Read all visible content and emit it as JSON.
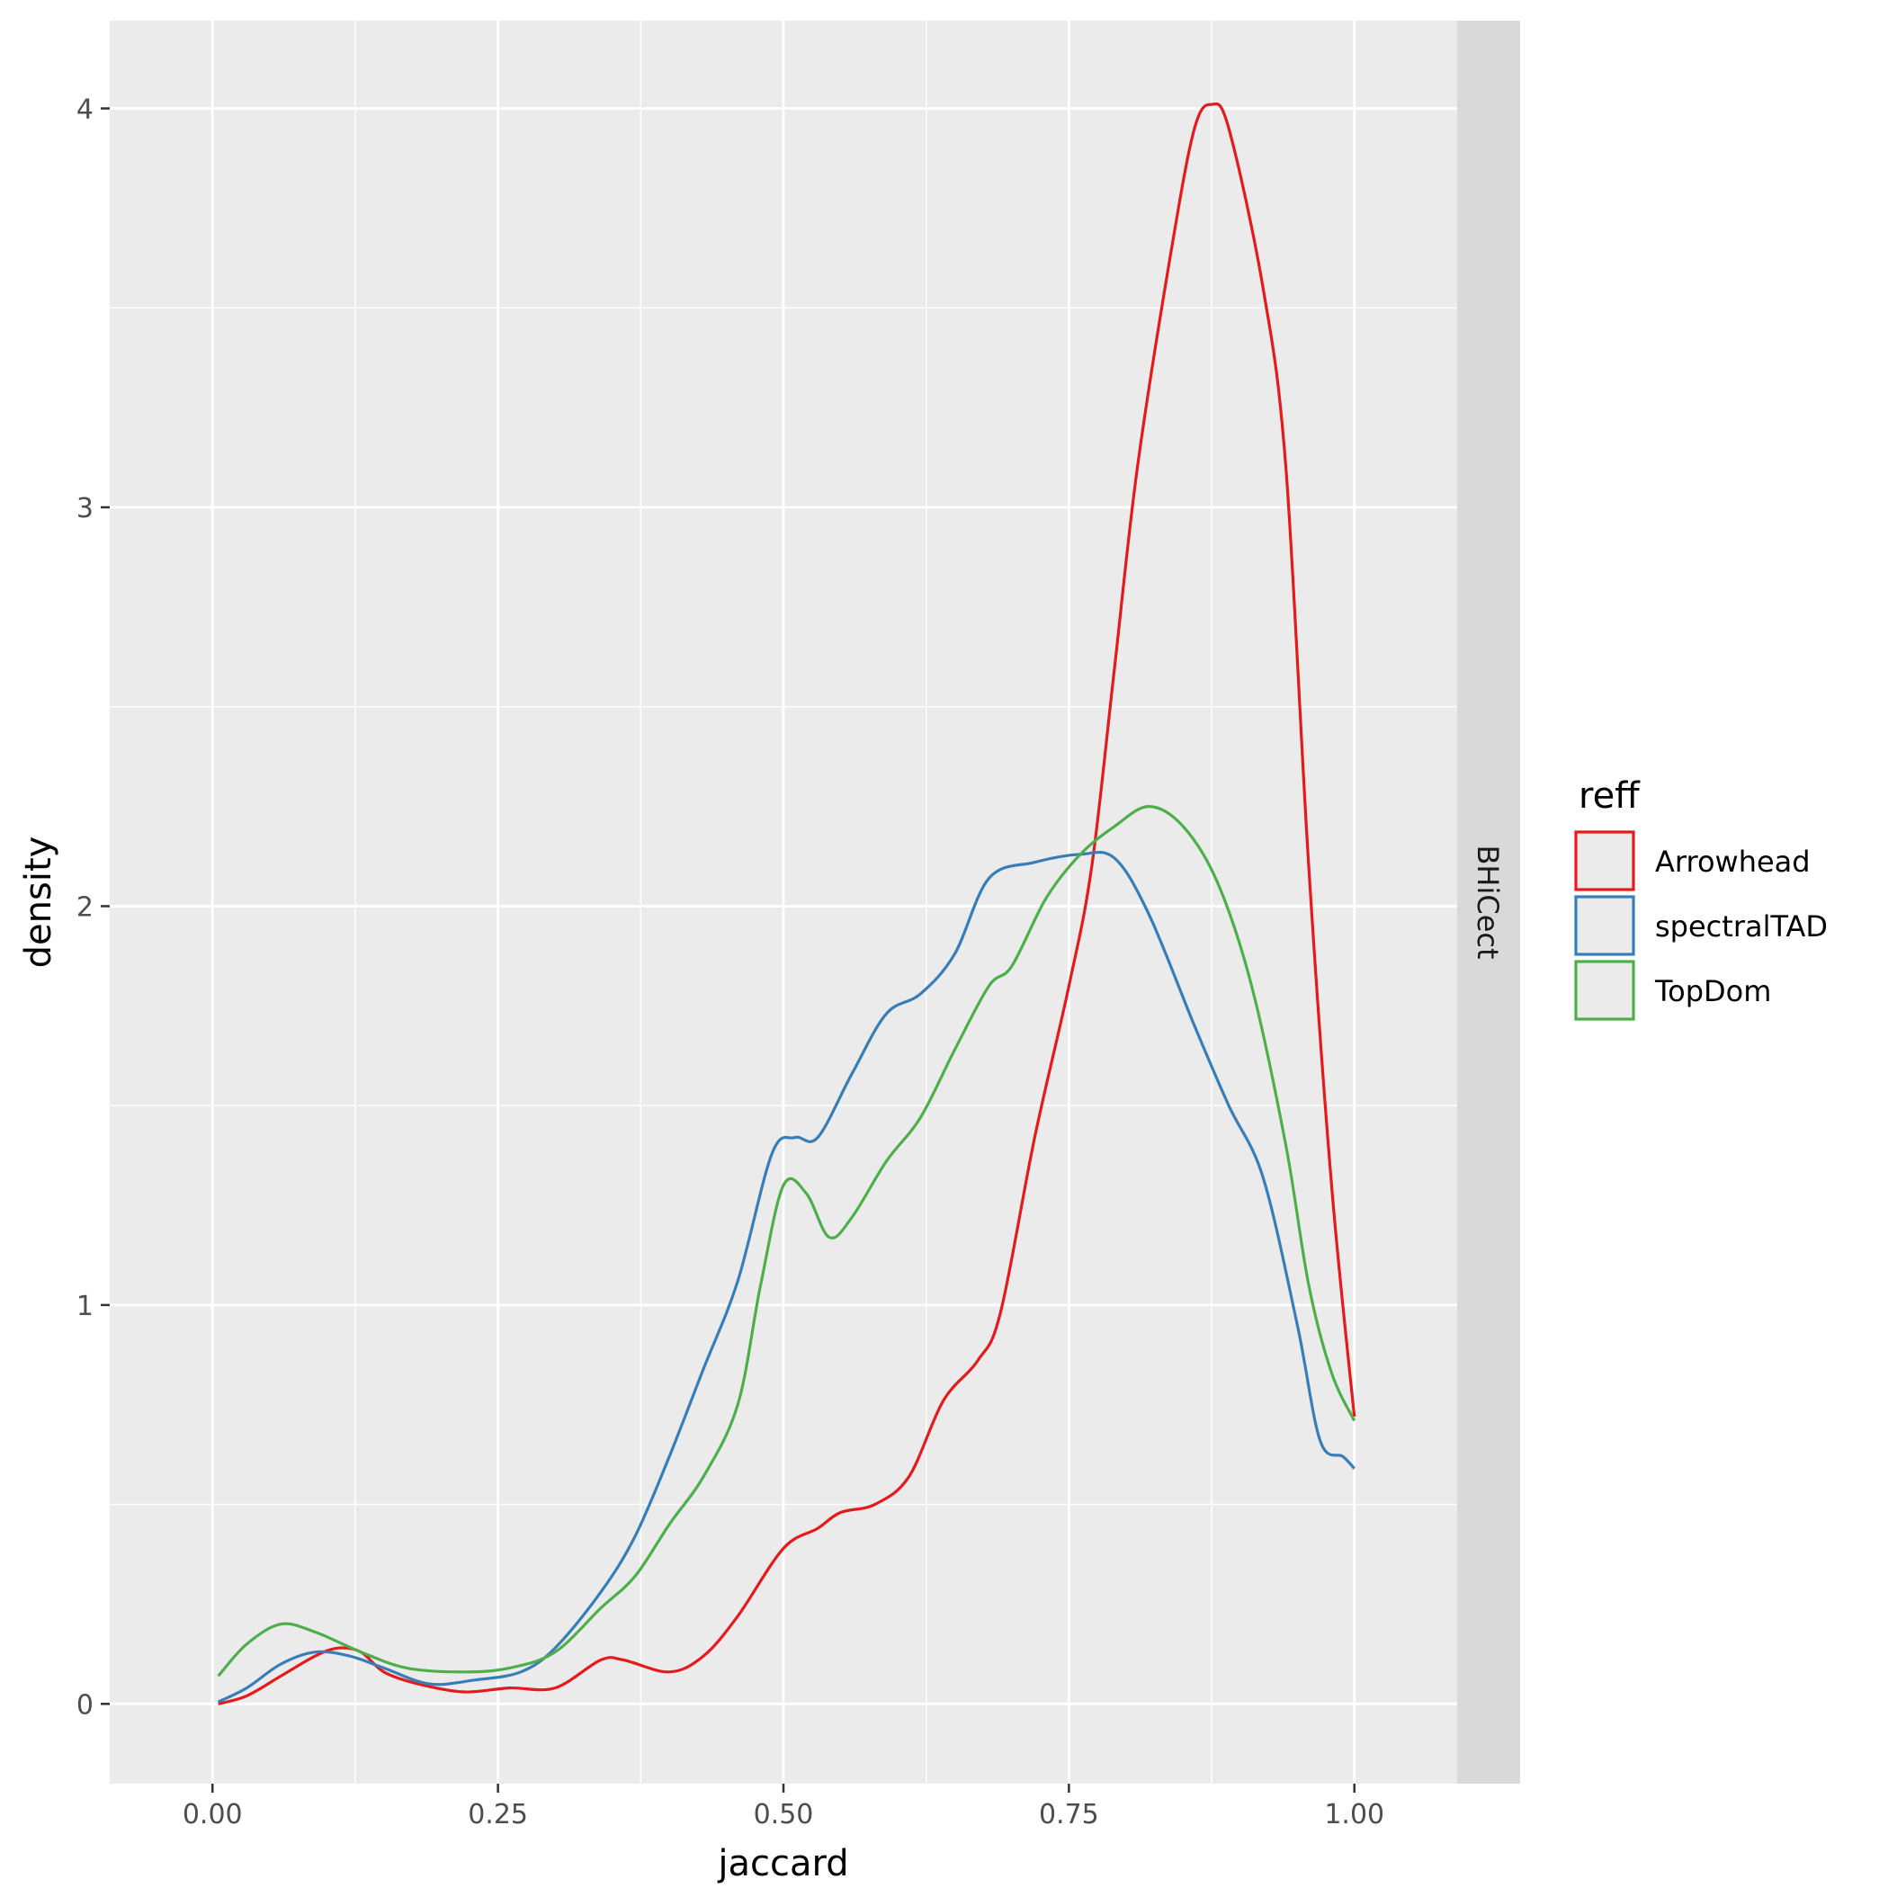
{
  "chart_data": {
    "type": "line",
    "xlabel": "jaccard",
    "ylabel": "density",
    "xlim": [
      -0.09,
      1.09
    ],
    "ylim": [
      -0.2,
      4.22
    ],
    "x_ticks": [
      "0.00",
      "0.25",
      "0.50",
      "0.75",
      "1.00"
    ],
    "y_ticks": [
      "0",
      "1",
      "2",
      "3",
      "4"
    ],
    "grid": true,
    "facet_label": "BHiCect",
    "legend": {
      "title": "reff",
      "position": "right"
    },
    "series": [
      {
        "name": "Arrowhead",
        "color": "#e41a1c",
        "points": [
          [
            0.005,
            0.0
          ],
          [
            0.03,
            0.02
          ],
          [
            0.06,
            0.07
          ],
          [
            0.09,
            0.12
          ],
          [
            0.11,
            0.14
          ],
          [
            0.13,
            0.13
          ],
          [
            0.15,
            0.08
          ],
          [
            0.18,
            0.05
          ],
          [
            0.22,
            0.03
          ],
          [
            0.26,
            0.04
          ],
          [
            0.3,
            0.04
          ],
          [
            0.34,
            0.11
          ],
          [
            0.36,
            0.11
          ],
          [
            0.4,
            0.08
          ],
          [
            0.43,
            0.12
          ],
          [
            0.46,
            0.22
          ],
          [
            0.5,
            0.39
          ],
          [
            0.53,
            0.44
          ],
          [
            0.55,
            0.48
          ],
          [
            0.58,
            0.5
          ],
          [
            0.61,
            0.57
          ],
          [
            0.64,
            0.76
          ],
          [
            0.67,
            0.86
          ],
          [
            0.69,
            0.98
          ],
          [
            0.72,
            1.42
          ],
          [
            0.75,
            1.8
          ],
          [
            0.77,
            2.1
          ],
          [
            0.79,
            2.6
          ],
          [
            0.81,
            3.1
          ],
          [
            0.84,
            3.65
          ],
          [
            0.86,
            3.95
          ],
          [
            0.875,
            4.01
          ],
          [
            0.89,
            3.95
          ],
          [
            0.92,
            3.55
          ],
          [
            0.94,
            3.1
          ],
          [
            0.96,
            2.1
          ],
          [
            0.98,
            1.3
          ],
          [
            1.0,
            0.72
          ]
        ]
      },
      {
        "name": "spectralTAD",
        "color": "#377eb8",
        "points": [
          [
            0.005,
            0.005
          ],
          [
            0.03,
            0.04
          ],
          [
            0.06,
            0.1
          ],
          [
            0.09,
            0.13
          ],
          [
            0.12,
            0.12
          ],
          [
            0.15,
            0.09
          ],
          [
            0.19,
            0.05
          ],
          [
            0.23,
            0.06
          ],
          [
            0.27,
            0.08
          ],
          [
            0.3,
            0.14
          ],
          [
            0.34,
            0.28
          ],
          [
            0.37,
            0.42
          ],
          [
            0.4,
            0.62
          ],
          [
            0.43,
            0.84
          ],
          [
            0.46,
            1.06
          ],
          [
            0.49,
            1.38
          ],
          [
            0.51,
            1.42
          ],
          [
            0.53,
            1.42
          ],
          [
            0.56,
            1.58
          ],
          [
            0.59,
            1.73
          ],
          [
            0.62,
            1.78
          ],
          [
            0.65,
            1.88
          ],
          [
            0.68,
            2.07
          ],
          [
            0.72,
            2.11
          ],
          [
            0.76,
            2.13
          ],
          [
            0.79,
            2.12
          ],
          [
            0.82,
            1.98
          ],
          [
            0.86,
            1.7
          ],
          [
            0.89,
            1.5
          ],
          [
            0.92,
            1.32
          ],
          [
            0.95,
            0.95
          ],
          [
            0.97,
            0.66
          ],
          [
            0.99,
            0.62
          ],
          [
            1.0,
            0.59
          ]
        ]
      },
      {
        "name": "TopDom",
        "color": "#4daf4a",
        "points": [
          [
            0.005,
            0.07
          ],
          [
            0.03,
            0.15
          ],
          [
            0.06,
            0.2
          ],
          [
            0.09,
            0.18
          ],
          [
            0.13,
            0.13
          ],
          [
            0.17,
            0.09
          ],
          [
            0.22,
            0.08
          ],
          [
            0.26,
            0.09
          ],
          [
            0.3,
            0.13
          ],
          [
            0.34,
            0.24
          ],
          [
            0.37,
            0.32
          ],
          [
            0.4,
            0.45
          ],
          [
            0.43,
            0.57
          ],
          [
            0.46,
            0.75
          ],
          [
            0.48,
            1.05
          ],
          [
            0.5,
            1.3
          ],
          [
            0.52,
            1.28
          ],
          [
            0.54,
            1.17
          ],
          [
            0.56,
            1.22
          ],
          [
            0.59,
            1.36
          ],
          [
            0.62,
            1.47
          ],
          [
            0.65,
            1.64
          ],
          [
            0.68,
            1.8
          ],
          [
            0.7,
            1.85
          ],
          [
            0.73,
            2.02
          ],
          [
            0.76,
            2.13
          ],
          [
            0.79,
            2.2
          ],
          [
            0.82,
            2.25
          ],
          [
            0.85,
            2.2
          ],
          [
            0.88,
            2.06
          ],
          [
            0.91,
            1.8
          ],
          [
            0.94,
            1.4
          ],
          [
            0.96,
            1.05
          ],
          [
            0.98,
            0.83
          ],
          [
            1.0,
            0.71
          ]
        ]
      }
    ]
  }
}
